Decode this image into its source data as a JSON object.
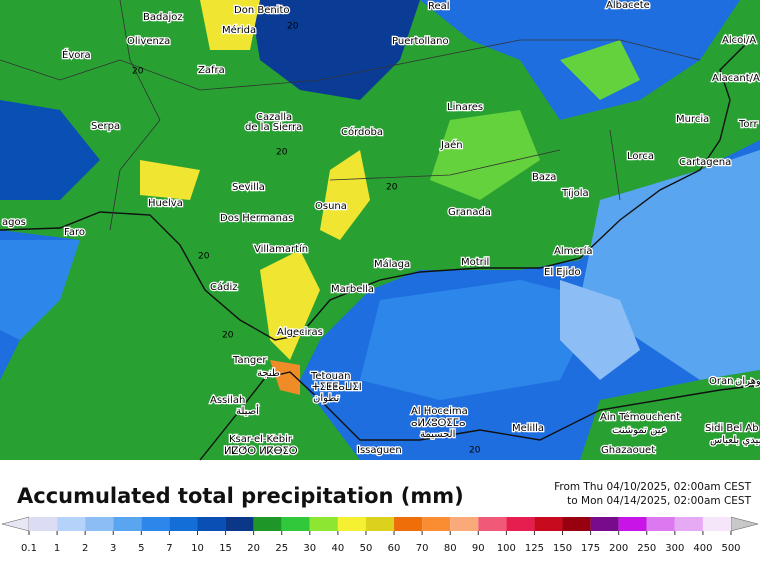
{
  "map": {
    "cities": [
      "Badajoz",
      "Don Benito",
      "Real",
      "Albacete",
      "Mérida",
      "Olivenza",
      "Puertollano",
      "Alcoi/A",
      "Évora",
      "Zafra",
      "Alacant/A",
      "Linares",
      "Murcia",
      "Serpa",
      "Cazalla",
      "de la Sierra",
      "Córdoba",
      "Torr",
      "Jaén",
      "Lorca",
      "Cartagena",
      "Sevilla",
      "Baza",
      "Tíjola",
      "Huelva",
      "Osuna",
      "Granada",
      "Dos Hermanas",
      "agos",
      "Faro",
      "Almería",
      "Villamartín",
      "Málaga",
      "Motril",
      "El Ejido",
      "Cádiz",
      "Marbella",
      "Algeciras",
      "Tanger",
      "طنجة",
      "Tetouan",
      "ⵜⵉⵟⵟⴰⵡⵉⵏ",
      "تطوان",
      "Assilah",
      "أصيلة",
      "Al Hoceima",
      "ⴰⵍⵃⵓⵙⵉⵎⴰ",
      "الحسيمة",
      "Melilla",
      "Ain Témouchent",
      "عين تموشنت",
      "Oran",
      "وهران",
      "Sidi Bel Ab",
      "سيدي بلعباس",
      "Ksar-el-Kebir",
      "ⵍⵇⵚⵔ ⵍⴽⴱⵉⵔ",
      "Issaguen",
      "Ghazaouet"
    ],
    "contour_labels": [
      20,
      20,
      20,
      20,
      20,
      20,
      20
    ]
  },
  "legend": {
    "title": "Accumulated total precipitation (mm)",
    "period": [
      "From Thu 04/10/2025, 02:00am CEST",
      "to Mon 04/14/2025, 02:00am CEST"
    ],
    "ticks": [
      0.1,
      1,
      2,
      3,
      5,
      7,
      10,
      15,
      20,
      25,
      30,
      40,
      50,
      60,
      70,
      80,
      90,
      100,
      125,
      150,
      175,
      200,
      250,
      300,
      400,
      500
    ],
    "colors": [
      "#dcdcf5",
      "#b4d2fa",
      "#8cbef5",
      "#5aa5f0",
      "#2d87eb",
      "#146ed7",
      "#0a50b4",
      "#0a3787",
      "#1e9628",
      "#32c83c",
      "#8ce632",
      "#f5f032",
      "#dcd21e",
      "#f06e0a",
      "#fa8c32",
      "#faaa78",
      "#f05a78",
      "#e61e50",
      "#c80a1e",
      "#96000f",
      "#780a8c",
      "#c814e6",
      "#dc78f0",
      "#e6aaf5",
      "#f5e6fa"
    ],
    "under_color": "#e6e6f5",
    "over_color": "#c8c8c8"
  }
}
